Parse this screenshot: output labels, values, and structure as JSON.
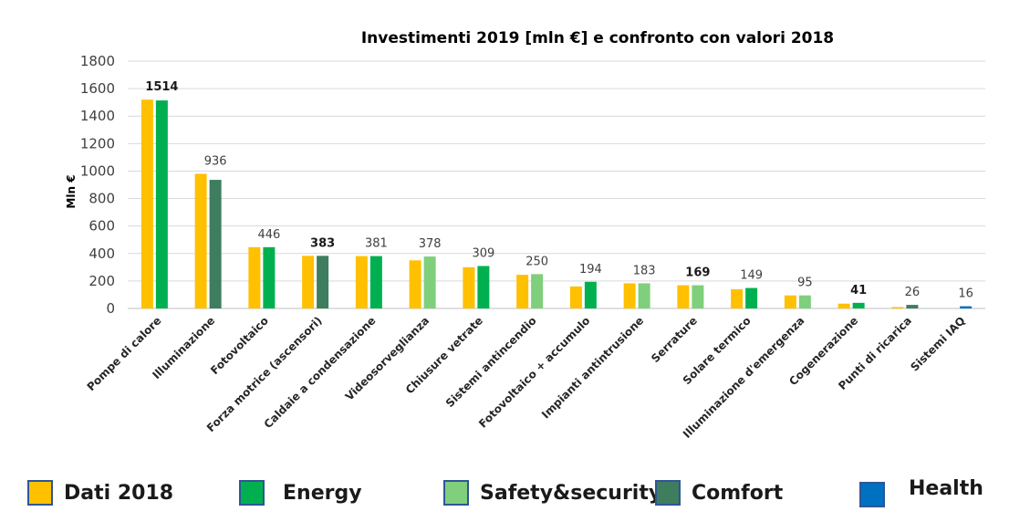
{
  "chart_data": {
    "type": "bar",
    "title": "Investimenti 2019 [mln €] e confronto con valori 2018",
    "ylabel": "Mln €",
    "xlabel": "",
    "ylim": [
      0,
      1800
    ],
    "yticks": [
      0,
      200,
      400,
      600,
      800,
      1000,
      1200,
      1400,
      1600,
      1800
    ],
    "grid": true,
    "categories": [
      "Pompe di calore",
      "Illuminazione",
      "Fotovoltaico",
      "Forza motrice (ascensori)",
      "Caldaie a condensazione",
      "Videosorveglianza",
      "Chiusure vetrate",
      "Sistemi antincendio",
      "Fotovoltaico + accumulo",
      "Impianti antintrusione",
      "Serrature",
      "Solare termico",
      "Illuminazione d'emergenza",
      "Cogenerazione",
      "Punti di ricarica",
      "Sistemi IAQ"
    ],
    "series": [
      {
        "name": "Dati 2018",
        "values": [
          1520,
          980,
          446,
          383,
          381,
          350,
          300,
          245,
          160,
          183,
          169,
          140,
          95,
          35,
          10,
          0
        ]
      },
      {
        "name": "Investimenti 2019",
        "values": [
          1514,
          936,
          446,
          383,
          381,
          378,
          309,
          250,
          194,
          183,
          169,
          149,
          95,
          41,
          26,
          16
        ],
        "category_group": [
          "Energy",
          "Comfort",
          "Energy",
          "Comfort",
          "Energy",
          "Safety&security",
          "Energy",
          "Safety&security",
          "Energy",
          "Safety&security",
          "Safety&security",
          "Energy",
          "Safety&security",
          "Energy",
          "Comfort",
          "Health"
        ]
      }
    ],
    "data_labels": [
      "1514",
      "936",
      "446",
      "383",
      "381",
      "378",
      "309",
      "250",
      "194",
      "183",
      "169",
      "149",
      "95",
      "41",
      "26",
      "16"
    ],
    "bold_labels": [
      true,
      false,
      false,
      true,
      false,
      false,
      false,
      false,
      false,
      false,
      true,
      false,
      false,
      true,
      false,
      false
    ],
    "colors": {
      "Dati 2018": "#ffc000",
      "Energy": "#00b050",
      "Safety&security": "#7fcf7c",
      "Comfort": "#3e7d5e",
      "Health": "#0070c0"
    }
  },
  "legend": [
    {
      "label": "Dati 2018",
      "color": "#ffc000"
    },
    {
      "label": "Energy",
      "color": "#00b050"
    },
    {
      "label": "Safety&security",
      "color": "#7fcf7c"
    },
    {
      "label": "Comfort",
      "color": "#3e7d5e"
    },
    {
      "label": "Health",
      "color": "#0070c0"
    }
  ]
}
